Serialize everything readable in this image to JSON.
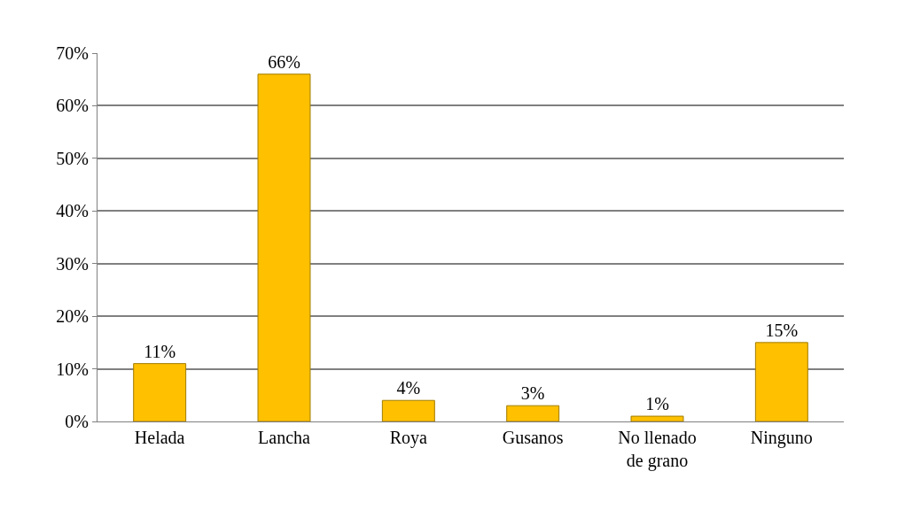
{
  "chart_data": {
    "type": "bar",
    "categories": [
      "Helada",
      "Lancha",
      "Roya",
      "Gusanos",
      "No llenado de grano",
      "Ninguno"
    ],
    "values": [
      11,
      66,
      4,
      3,
      1,
      15
    ],
    "value_labels": [
      "11%",
      "66%",
      "4%",
      "3%",
      "1%",
      "15%"
    ],
    "color": "#ffc000",
    "ylim": [
      0,
      70
    ],
    "yticks": [
      {
        "value": 0,
        "label": "0%"
      },
      {
        "value": 10,
        "label": "10%"
      },
      {
        "value": 20,
        "label": "20%"
      },
      {
        "value": 30,
        "label": "30%"
      },
      {
        "value": 40,
        "label": "40%"
      },
      {
        "value": 50,
        "label": "50%"
      },
      {
        "value": 60,
        "label": "60%"
      },
      {
        "value": 70,
        "label": "70%"
      }
    ],
    "grid": "y"
  }
}
